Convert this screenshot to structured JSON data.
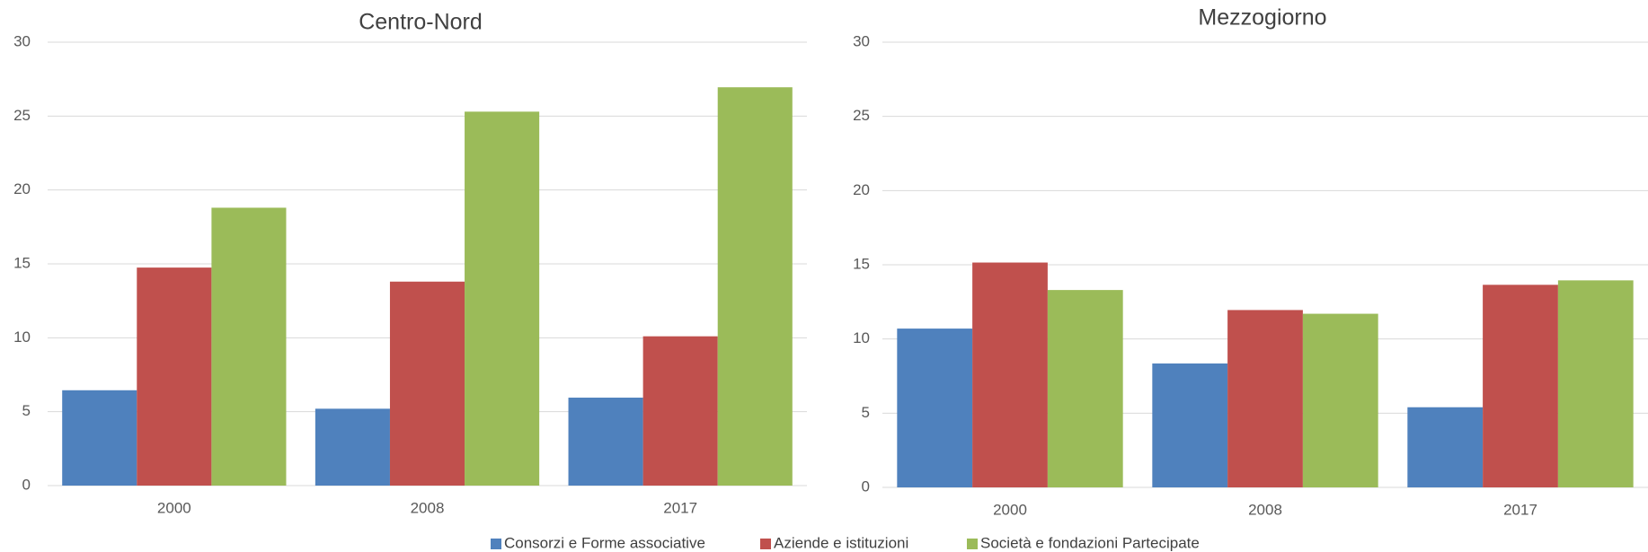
{
  "chart_data": [
    {
      "type": "bar",
      "title": "Centro-Nord",
      "categories": [
        "2000",
        "2008",
        "2017"
      ],
      "series": [
        {
          "name": "Consorzi e Forme associative",
          "color": "#4f81bd",
          "values": [
            6.45,
            5.2,
            5.95
          ]
        },
        {
          "name": "Aziende e istituzioni",
          "color": "#c0504d",
          "values": [
            14.75,
            13.8,
            10.1
          ]
        },
        {
          "name": "Società e fondazioni Partecipate",
          "color": "#9bbb59",
          "values": [
            18.8,
            25.3,
            26.95
          ]
        }
      ],
      "ylim": [
        0,
        30
      ],
      "yticks": [
        0,
        5,
        10,
        15,
        20,
        25,
        30
      ],
      "grid": true
    },
    {
      "type": "bar",
      "title": "Mezzogiorno",
      "categories": [
        "2000",
        "2008",
        "2017"
      ],
      "series": [
        {
          "color": "#4f81bd",
          "values": [
            10.7,
            8.35,
            5.4
          ]
        },
        {
          "color": "#c0504d",
          "values": [
            15.15,
            11.95,
            13.65
          ]
        },
        {
          "color": "#9bbb59",
          "values": [
            13.3,
            11.7,
            13.95
          ]
        }
      ],
      "ylim": [
        0,
        30
      ],
      "yticks": [
        0,
        5,
        10,
        15,
        20,
        25,
        30
      ],
      "grid": true
    }
  ]
}
